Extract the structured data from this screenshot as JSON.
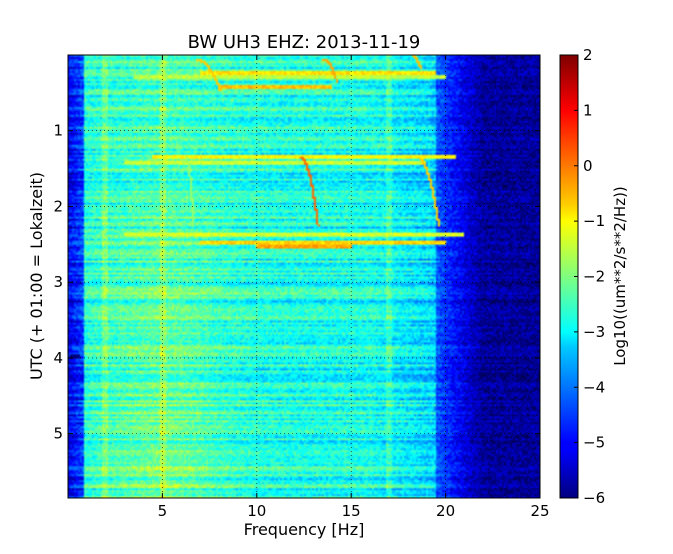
{
  "chart_data": {
    "type": "heatmap",
    "title": "BW UH3 EHZ: 2013-11-19",
    "xlabel": "Frequency [Hz]",
    "ylabel": "UTC (+ 01:00 = Lokalzeit)",
    "xlim": [
      0,
      25
    ],
    "ylim": [
      5.85,
      0.0
    ],
    "x_ticks": [
      5,
      10,
      15,
      20,
      25
    ],
    "y_ticks": [
      1,
      2,
      3,
      4,
      5
    ],
    "grid": true,
    "colormap": "jet",
    "colorbar": {
      "label": "Log10((um**2/s**2/Hz))",
      "range": [
        -6,
        2
      ],
      "ticks": [
        2,
        1,
        0,
        -1,
        -2,
        -3,
        -4,
        -5,
        -6
      ]
    },
    "background_level_low_freq": -4.5,
    "background_level_mid_freq": -2.8,
    "background_level_high_freq": -5.8,
    "band_edge_hz": 19.5,
    "dark_band_below_hz": 0.8,
    "bright_line_hz": [
      2.0,
      5.0,
      17.0
    ],
    "sweeps": [
      {
        "f_start": 6.2,
        "f_end": 6.6,
        "t_start": 1.35,
        "t_end": 2.25,
        "level": -1.8
      },
      {
        "f_start": 12.3,
        "f_end": 13.2,
        "t_start": 1.35,
        "t_end": 2.25,
        "level": 0.2
      },
      {
        "f_start": 18.5,
        "f_end": 19.6,
        "t_start": 1.35,
        "t_end": 2.25,
        "level": -0.6
      },
      {
        "f_start": 6.8,
        "f_end": 8.0,
        "t_start": 0.05,
        "t_end": 0.45,
        "level": -0.6
      },
      {
        "f_start": 13.5,
        "f_end": 14.2,
        "t_start": 0.05,
        "t_end": 0.35,
        "level": -0.3
      },
      {
        "f_start": 18.2,
        "f_end": 18.6,
        "t_start": 0.0,
        "t_end": 0.15,
        "level": -0.5
      }
    ],
    "horizontal_streaks": [
      {
        "t": 0.2,
        "f_from": 7.0,
        "f_to": 19.5,
        "level": -0.8
      },
      {
        "t": 0.27,
        "f_from": 3.5,
        "f_to": 20.0,
        "level": -1.5
      },
      {
        "t": 0.4,
        "f_from": 8.0,
        "f_to": 14.0,
        "level": -0.5
      },
      {
        "t": 1.32,
        "f_from": 4.5,
        "f_to": 20.5,
        "level": -1.0
      },
      {
        "t": 1.4,
        "f_from": 3.0,
        "f_to": 19.0,
        "level": -1.4
      },
      {
        "t": 2.35,
        "f_from": 3.0,
        "f_to": 21.0,
        "level": -1.3
      },
      {
        "t": 2.45,
        "f_from": 7.0,
        "f_to": 20.0,
        "level": -0.7
      },
      {
        "t": 2.5,
        "f_from": 10.0,
        "f_to": 15.0,
        "level": -0.3
      },
      {
        "t": 3.95,
        "f_from": 0.1,
        "f_to": 0.6,
        "level": -6.0
      }
    ]
  }
}
